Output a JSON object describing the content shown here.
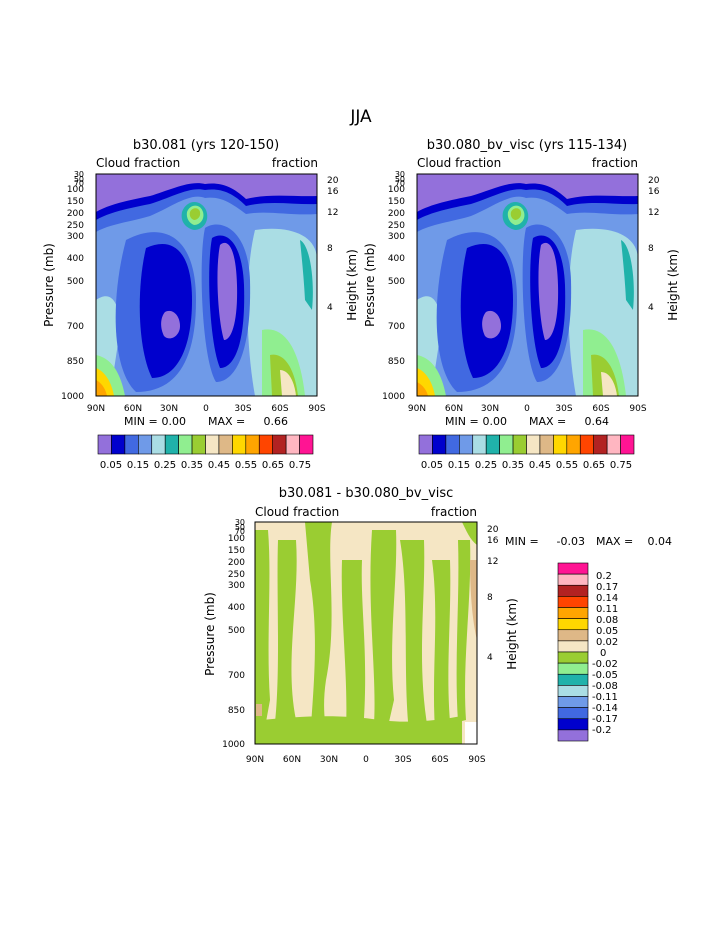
{
  "page_title": "JJA",
  "chart_data": [
    {
      "type": "heatmap",
      "title": "b30.081 (yrs 120-150)",
      "left_label": "Cloud fraction",
      "right_label": "fraction",
      "ylabel": "Pressure (mb)",
      "ylabel_right": "Height (km)",
      "x_ticks": [
        "90N",
        "60N",
        "30N",
        "0",
        "30S",
        "60S",
        "90S"
      ],
      "y_ticks": [
        "30",
        "50",
        "70",
        "100",
        "150",
        "200",
        "250",
        "300",
        "400",
        "500",
        "700",
        "850",
        "1000"
      ],
      "height_ticks": [
        "20",
        "16",
        "12",
        "8",
        "4"
      ],
      "min_label": "MIN =",
      "min_value": "0.00",
      "max_label": "MAX =",
      "max_value": "0.66",
      "colorbar_labels": [
        "0.05",
        "0.15",
        "0.25",
        "0.35",
        "0.45",
        "0.55",
        "0.65",
        "0.75"
      ],
      "colorbar_colors": [
        "#9370db",
        "#0000cd",
        "#4169e1",
        "#6f9ae8",
        "#aadde4",
        "#20b2aa",
        "#90ee90",
        "#9acd32",
        "#f5e6c4",
        "#deb887",
        "#ffd700",
        "#ffa500",
        "#ff4500",
        "#b22222",
        "#ffb6c1",
        "#ff1493"
      ]
    },
    {
      "type": "heatmap",
      "title": "b30.080_bv_visc (yrs 115-134)",
      "left_label": "Cloud fraction",
      "right_label": "fraction",
      "ylabel": "Pressure (mb)",
      "ylabel_right": "Height (km)",
      "x_ticks": [
        "90N",
        "60N",
        "30N",
        "0",
        "30S",
        "60S",
        "90S"
      ],
      "y_ticks": [
        "30",
        "50",
        "70",
        "100",
        "150",
        "200",
        "250",
        "300",
        "400",
        "500",
        "700",
        "850",
        "1000"
      ],
      "height_ticks": [
        "20",
        "16",
        "12",
        "8",
        "4"
      ],
      "min_label": "MIN =",
      "min_value": "0.00",
      "max_label": "MAX =",
      "max_value": "0.64",
      "colorbar_labels": [
        "0.05",
        "0.15",
        "0.25",
        "0.35",
        "0.45",
        "0.55",
        "0.65",
        "0.75"
      ],
      "colorbar_colors": [
        "#9370db",
        "#0000cd",
        "#4169e1",
        "#6f9ae8",
        "#aadde4",
        "#20b2aa",
        "#90ee90",
        "#9acd32",
        "#f5e6c4",
        "#deb887",
        "#ffd700",
        "#ffa500",
        "#ff4500",
        "#b22222",
        "#ffb6c1",
        "#ff1493"
      ]
    },
    {
      "type": "heatmap",
      "title": "b30.081 - b30.080_bv_visc",
      "left_label": "Cloud fraction",
      "right_label": "fraction",
      "ylabel": "Pressure (mb)",
      "ylabel_right": "Height (km)",
      "x_ticks": [
        "90N",
        "60N",
        "30N",
        "0",
        "30S",
        "60S",
        "90S"
      ],
      "y_ticks": [
        "30",
        "50",
        "70",
        "100",
        "150",
        "200",
        "250",
        "300",
        "400",
        "500",
        "700",
        "850",
        "1000"
      ],
      "height_ticks": [
        "20",
        "16",
        "12",
        "8",
        "4"
      ],
      "min_label": "MIN =",
      "min_value": "-0.03",
      "max_label": "MAX =",
      "max_value": "0.04",
      "colorbar_labels": [
        "0.2",
        "0.17",
        "0.14",
        "0.11",
        "0.08",
        "0.05",
        "0.02",
        "0",
        "-0.02",
        "-0.05",
        "-0.08",
        "-0.11",
        "-0.14",
        "-0.17",
        "-0.2"
      ],
      "colorbar_colors": [
        "#ff1493",
        "#ffb6c1",
        "#b22222",
        "#ff4500",
        "#ffa500",
        "#ffd700",
        "#deb887",
        "#f5e6c4",
        "#9acd32",
        "#90ee90",
        "#20b2aa",
        "#aadde4",
        "#6f9ae8",
        "#4169e1",
        "#0000cd",
        "#9370db"
      ]
    }
  ]
}
